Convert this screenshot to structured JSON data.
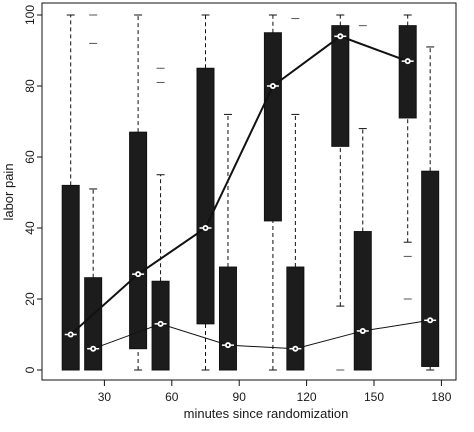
{
  "chart_data": {
    "type": "box",
    "xlabel": "minutes since randomization",
    "ylabel": "labor pain",
    "x_ticks": [
      "30",
      "60",
      "90",
      "120",
      "150",
      "180"
    ],
    "y_ticks": [
      "0",
      "20",
      "40",
      "60",
      "80",
      "100"
    ],
    "xlim": [
      0,
      195
    ],
    "ylim": [
      0,
      100
    ],
    "grid": false,
    "series": [
      {
        "line_style": "thick",
        "boxes": [
          {
            "x": 15,
            "whisker_low": 0,
            "q1": 0,
            "median": 10,
            "q3": 52,
            "whisker_high": 100,
            "outliers": []
          },
          {
            "x": 45,
            "whisker_low": 0,
            "q1": 6,
            "median": 27,
            "q3": 67,
            "whisker_high": 100,
            "outliers": []
          },
          {
            "x": 75,
            "whisker_low": 0,
            "q1": 13,
            "median": 40,
            "q3": 85,
            "whisker_high": 100,
            "outliers": []
          },
          {
            "x": 105,
            "whisker_low": 0,
            "q1": 42,
            "median": 80,
            "q3": 95,
            "whisker_high": 100,
            "outliers": []
          },
          {
            "x": 135,
            "whisker_low": 18,
            "q1": 63,
            "median": 94,
            "q3": 97,
            "whisker_high": 100,
            "outliers": [
              0
            ]
          },
          {
            "x": 165,
            "whisker_low": 36,
            "q1": 71,
            "median": 87,
            "q3": 97,
            "whisker_high": 100,
            "outliers": [
              32,
              20
            ]
          }
        ]
      },
      {
        "line_style": "thin",
        "boxes": [
          {
            "x": 25,
            "whisker_low": 0,
            "q1": 0,
            "median": 6,
            "q3": 26,
            "whisker_high": 51,
            "outliers": [
              100,
              92
            ]
          },
          {
            "x": 55,
            "whisker_low": 0,
            "q1": 0,
            "median": 13,
            "q3": 25,
            "whisker_high": 55,
            "outliers": [
              85,
              81
            ]
          },
          {
            "x": 85,
            "whisker_low": 0,
            "q1": 0,
            "median": 7,
            "q3": 29,
            "whisker_high": 72,
            "outliers": []
          },
          {
            "x": 115,
            "whisker_low": 0,
            "q1": 0,
            "median": 6,
            "q3": 29,
            "whisker_high": 72,
            "outliers": [
              99
            ]
          },
          {
            "x": 145,
            "whisker_low": 0,
            "q1": 0,
            "median": 11,
            "q3": 39,
            "whisker_high": 68,
            "outliers": [
              97
            ]
          },
          {
            "x": 175,
            "whisker_low": 0,
            "q1": 1,
            "median": 14,
            "q3": 56,
            "whisker_high": 91,
            "outliers": []
          }
        ]
      }
    ]
  }
}
